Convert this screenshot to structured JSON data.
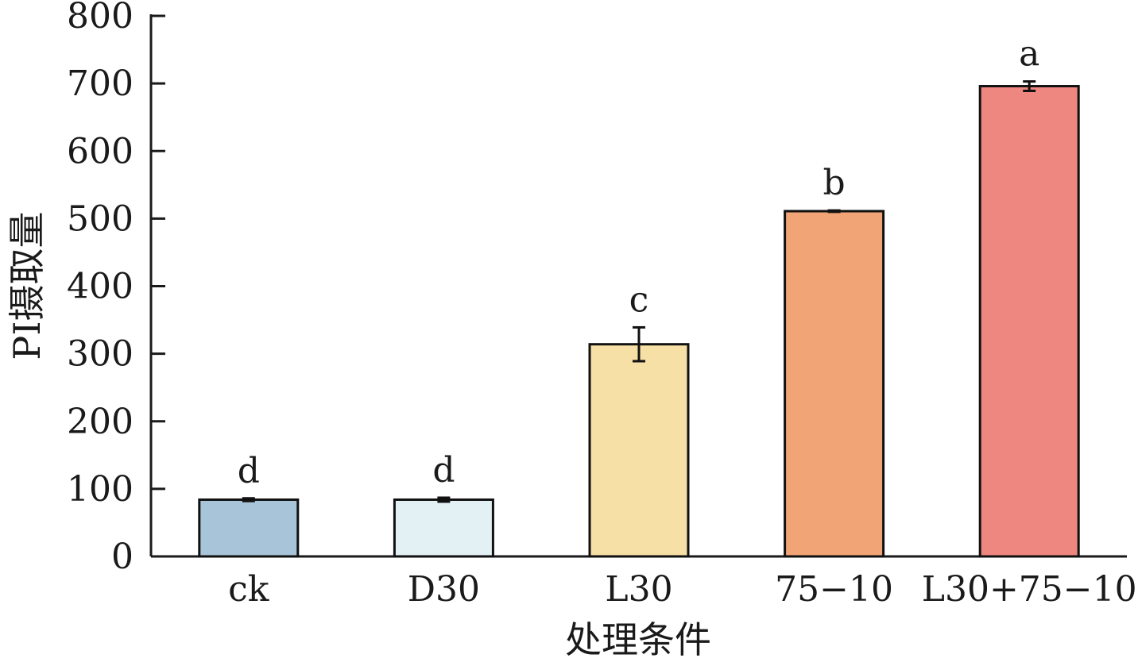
{
  "chart_data": {
    "type": "bar",
    "categories": [
      "ck",
      "D30",
      "L30",
      "75−10",
      "L30+75−10"
    ],
    "values": [
      84,
      84,
      314,
      511,
      696
    ],
    "errors": [
      2,
      3,
      25,
      1,
      7
    ],
    "significance_labels": [
      "d",
      "d",
      "c",
      "b",
      "a"
    ],
    "bar_colors": [
      "#a8c4d8",
      "#e3f0f4",
      "#f7e0a6",
      "#f1a576",
      "#ee8780"
    ],
    "xlabel": "处理条件",
    "ylabel": "PI摄取量",
    "ylim": [
      0,
      800
    ],
    "yticks": [
      0,
      100,
      200,
      300,
      400,
      500,
      600,
      700,
      800
    ],
    "grid": false
  }
}
